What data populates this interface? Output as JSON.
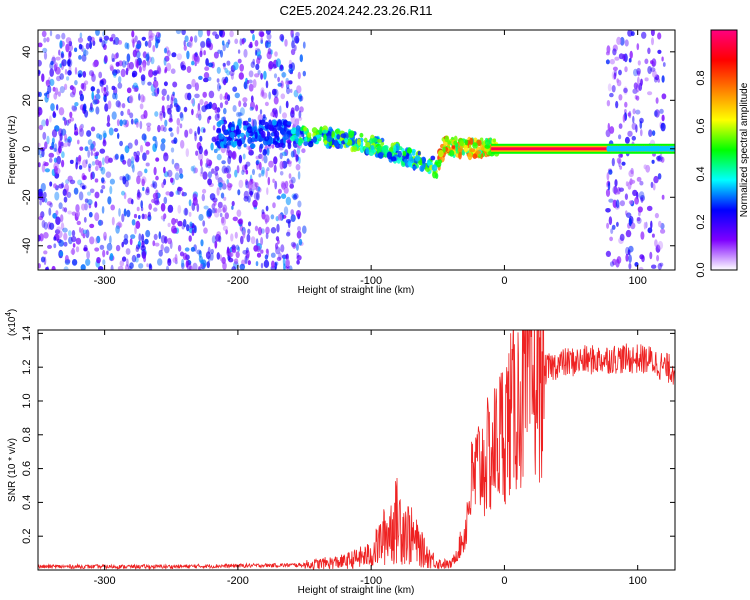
{
  "title": "C2E5.2024.242.23.26.R11",
  "colors": {
    "snr_line": "#ee2222",
    "frame": "#000000",
    "background": "#ffffff"
  },
  "chart_data": [
    {
      "type": "heatmap",
      "title": "C2E5.2024.242.23.26.R11",
      "xlabel": "Height of straight line (km)",
      "ylabel": "Frequency (Hz)",
      "xlim": [
        -350,
        128
      ],
      "ylim": [
        -50,
        49
      ],
      "x_ticks": [
        -300,
        -200,
        -100,
        0,
        100
      ],
      "y_ticks": [
        -40,
        -20,
        0,
        20,
        40
      ],
      "colorbar": {
        "label": "Normalized spectral amplitude",
        "range": [
          0,
          1
        ],
        "ticks": [
          "0.0",
          "0.2",
          "0.4",
          "0.6",
          "0.8"
        ],
        "colormap": [
          "#ffffff",
          "#7e00ff",
          "#0000ff",
          "#00ffff",
          "#00ff00",
          "#ffff00",
          "#ff8000",
          "#ff0000",
          "#ff0080"
        ]
      },
      "features": {
        "carrier_line": {
          "x_range": [
            -10,
            128
          ],
          "frequency": 0,
          "amplitude": 0.95
        },
        "noise_regions": [
          {
            "x_range": [
              -350,
              -150
            ],
            "amplitude": 0.3
          },
          {
            "x_range": [
              77,
              120
            ],
            "amplitude": 0.25
          }
        ],
        "signal_track": [
          {
            "x": -160,
            "frequency": 6
          },
          {
            "x": -120,
            "frequency": 4
          },
          {
            "x": -90,
            "frequency": 0
          },
          {
            "x": -70,
            "frequency": -4
          },
          {
            "x": -50,
            "frequency": -8
          },
          {
            "x": -45,
            "frequency": 2
          },
          {
            "x": -30,
            "frequency": 0
          },
          {
            "x": 0,
            "frequency": 1
          },
          {
            "x": 128,
            "frequency": 0
          }
        ]
      },
      "grid": false
    },
    {
      "type": "line",
      "xlabel": "Height of straight line (km)",
      "ylabel": "SNR (10 * v/v)",
      "y_multiplier": "(x10",
      "y_multiplier_exp": "4",
      "xlim": [
        -350,
        128
      ],
      "ylim": [
        0,
        1.42
      ],
      "x_ticks": [
        -300,
        -200,
        -100,
        0,
        100
      ],
      "y_ticks": [
        0.2,
        0.4,
        0.6,
        0.8,
        1.0,
        1.2,
        1.4
      ],
      "series": [
        {
          "x": [
            -350,
            -250,
            -150,
            -120,
            -100,
            -90,
            -80,
            -70,
            -60,
            -50,
            -40,
            -30,
            -25,
            -20,
            -10,
            0,
            10,
            20,
            30,
            40,
            60,
            80,
            100,
            110,
            120,
            128
          ],
          "y": [
            0.02,
            0.02,
            0.03,
            0.05,
            0.09,
            0.2,
            0.3,
            0.2,
            0.1,
            0.04,
            0.03,
            0.2,
            0.5,
            0.6,
            0.68,
            0.85,
            1.0,
            1.08,
            1.18,
            1.22,
            1.24,
            1.25,
            1.25,
            1.24,
            1.2,
            1.18
          ]
        }
      ],
      "grid": false
    }
  ]
}
